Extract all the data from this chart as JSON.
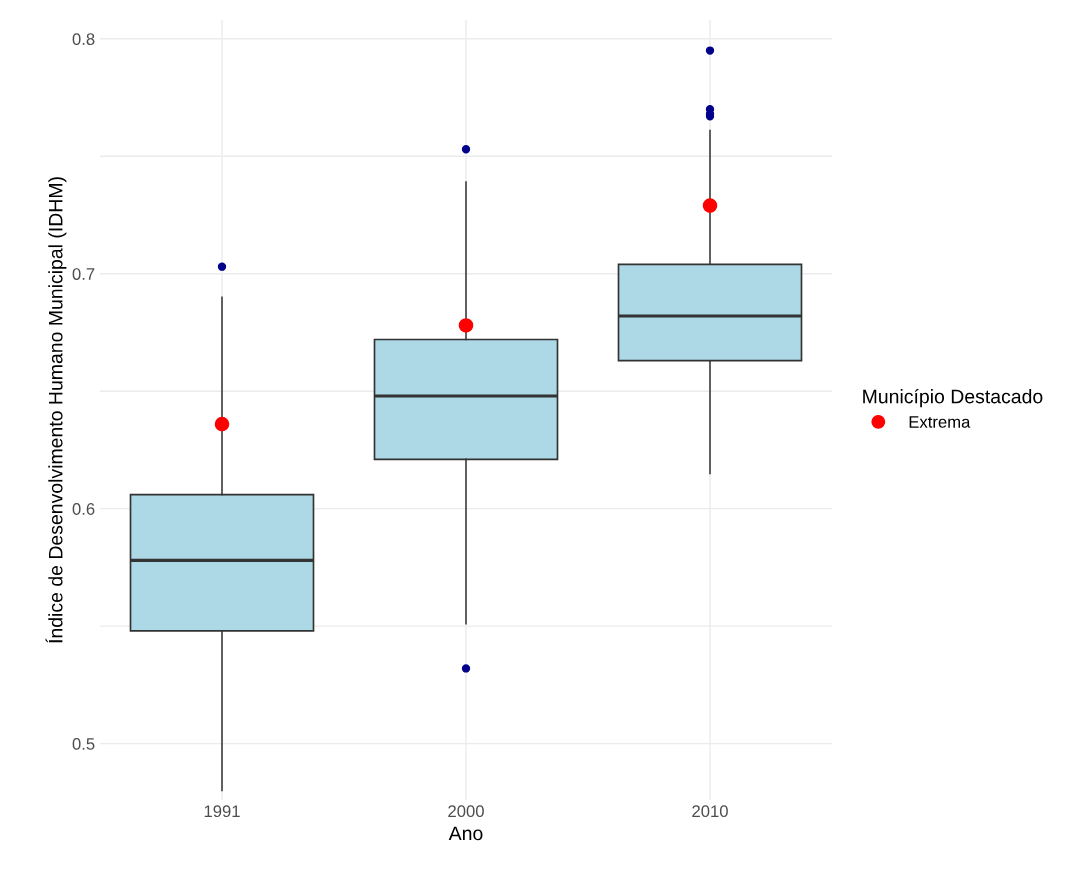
{
  "chart_data": {
    "type": "box",
    "xlabel": "Ano",
    "ylabel": "Índice de Desenvolvimento Humano Municipal (IDHM)",
    "legend_title": "Município Destacado",
    "categories": [
      "1991",
      "2000",
      "2010"
    ],
    "boxes": [
      {
        "low": 0.48,
        "q1": 0.548,
        "median": 0.578,
        "q3": 0.606,
        "high": 0.69,
        "outliers": [
          0.703
        ]
      },
      {
        "low": 0.551,
        "q1": 0.621,
        "median": 0.648,
        "q3": 0.672,
        "high": 0.739,
        "outliers": [
          0.753,
          0.532
        ]
      },
      {
        "low": 0.615,
        "q1": 0.663,
        "median": 0.682,
        "q3": 0.704,
        "high": 0.761,
        "outliers": [
          0.795,
          0.77,
          0.768,
          0.767
        ]
      }
    ],
    "color": "#add8e6",
    "series": [
      {
        "name": "Extrema",
        "type": "scatter",
        "color": "#ff0000",
        "values": [
          0.636,
          0.678,
          0.729
        ]
      }
    ],
    "ylim": [
      0.476,
      0.808
    ],
    "yticks": [
      0.5,
      {
        "value": 0.55,
        "label": null
      },
      0.6,
      {
        "value": 0.65,
        "label": null
      },
      0.7,
      {
        "value": 0.75,
        "label": null
      },
      0.8
    ],
    "grid": true,
    "legend": "right"
  }
}
